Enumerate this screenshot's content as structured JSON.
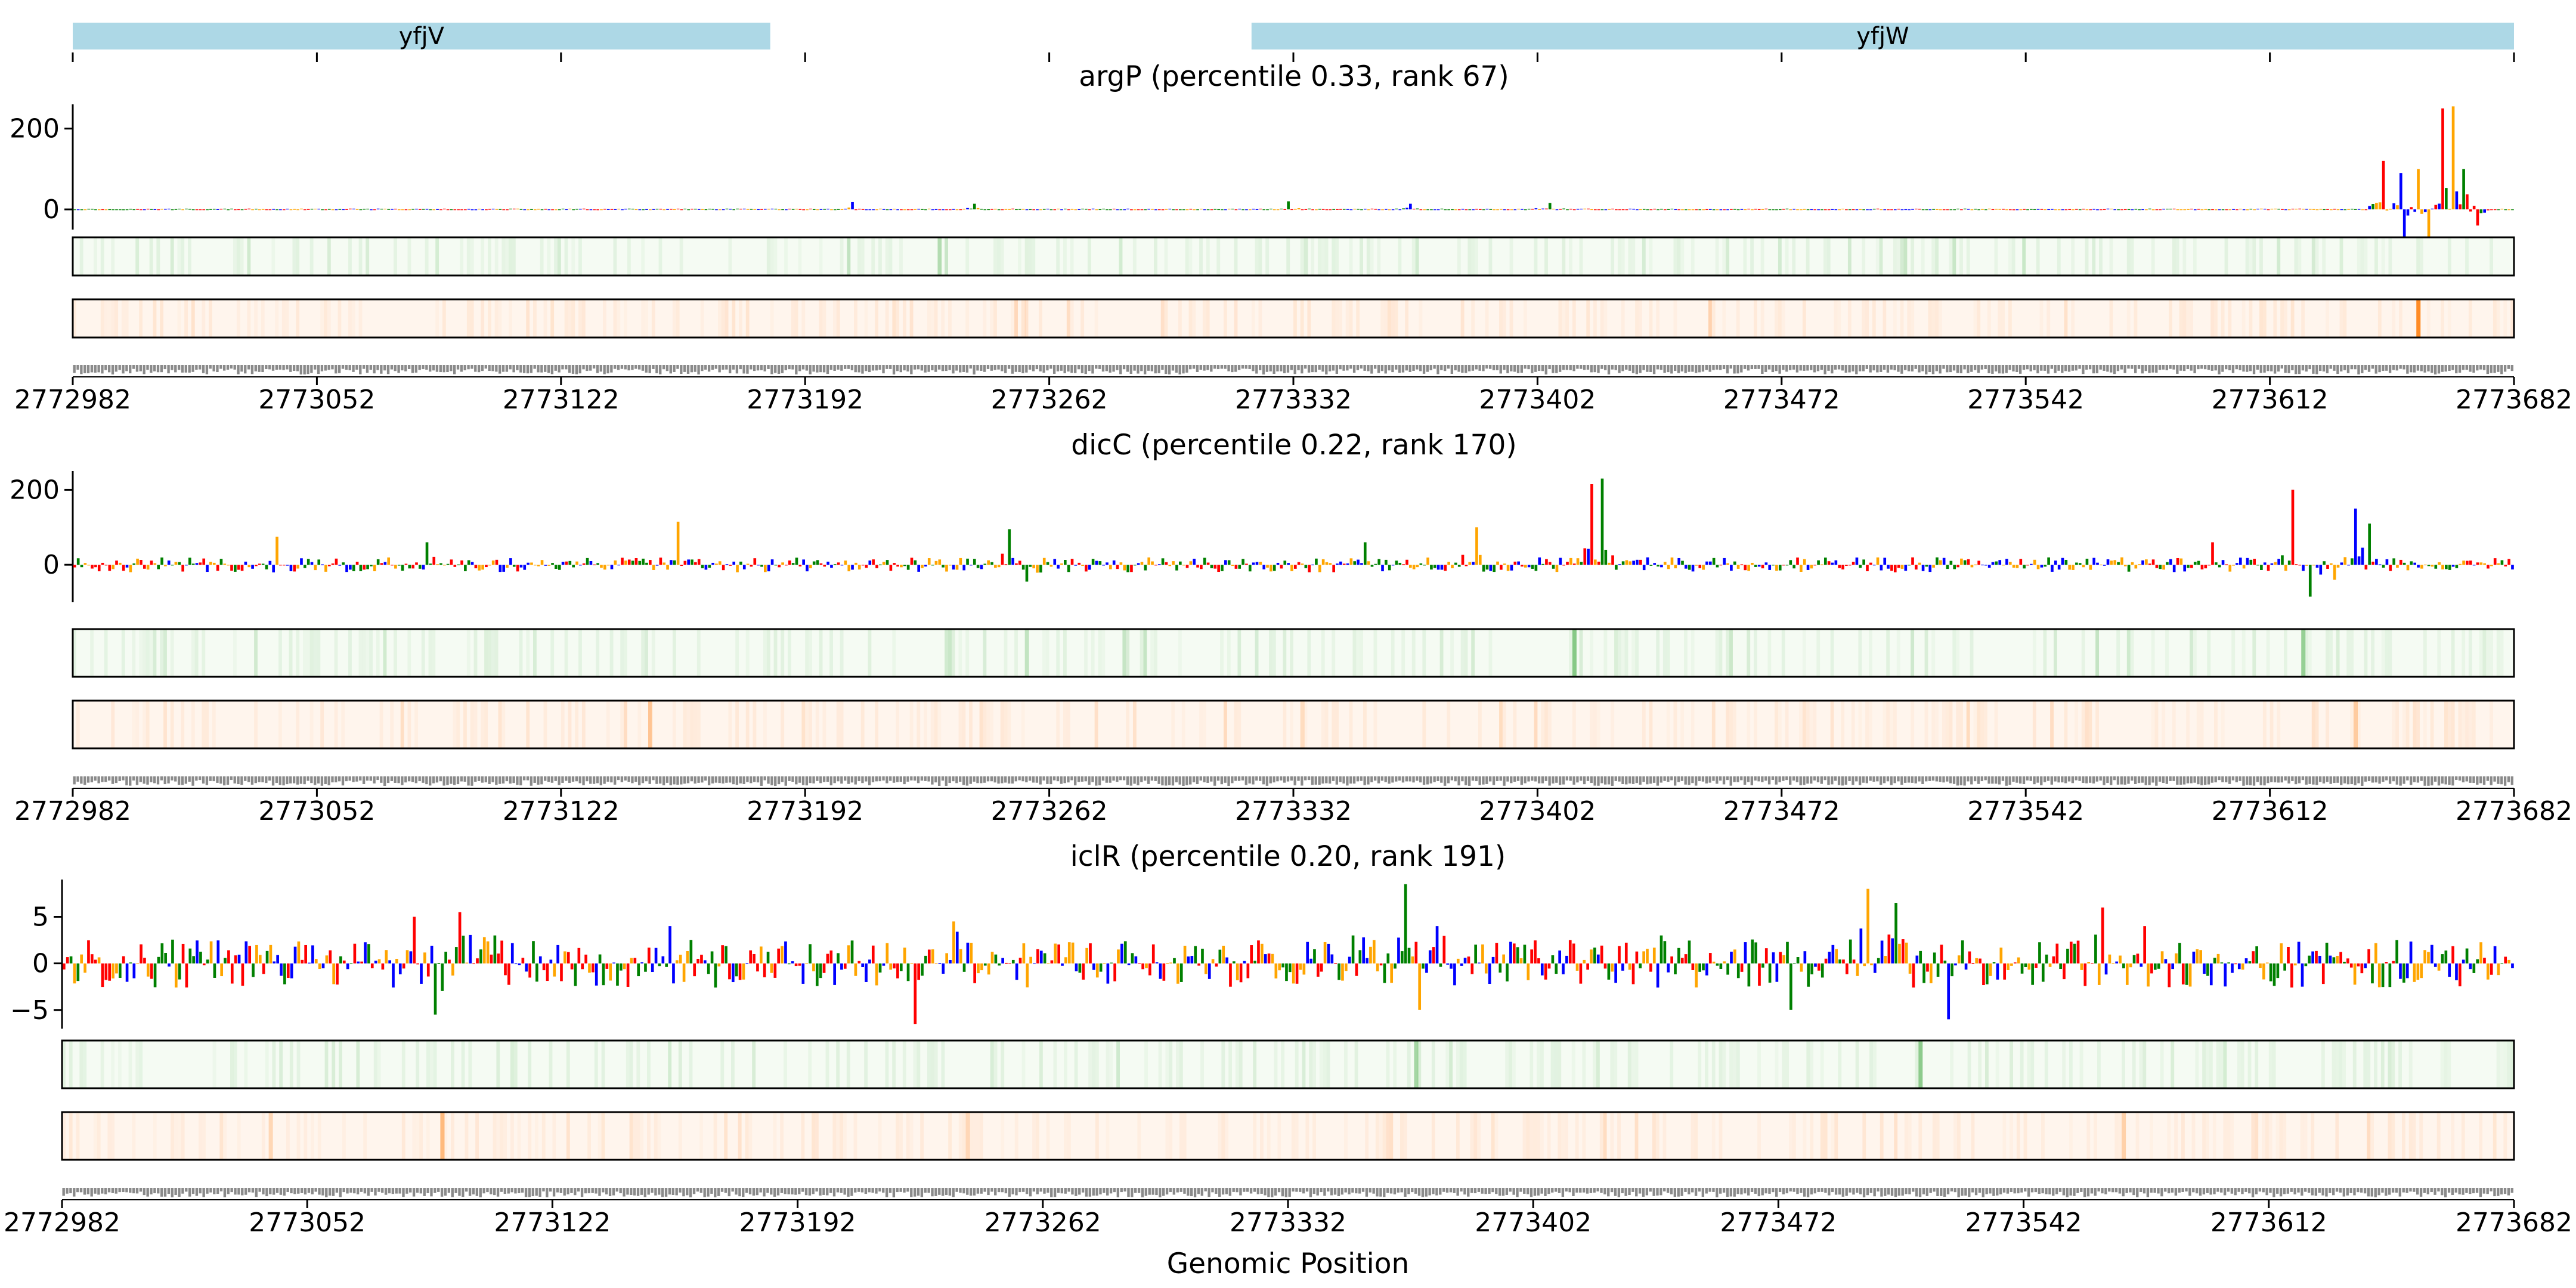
{
  "figure": {
    "xlabel": "Genomic Position",
    "x_ticks": [
      "2772982",
      "2773052",
      "2773122",
      "2773192",
      "2773262",
      "2773332",
      "2773402",
      "2773472",
      "2773542",
      "2773612",
      "2773682"
    ],
    "genes": [
      {
        "name": "yfjV",
        "start": 2772982,
        "end": 2773182
      },
      {
        "name": "yfjW",
        "start": 2773320,
        "end": 2773682
      }
    ]
  },
  "colors": {
    "A": "#008000",
    "C": "#0000ff",
    "G": "#ffa500",
    "T": "#ff0000",
    "gene_bar": "#add8e6",
    "attribution_track": "#2ca02c",
    "prediction_track": "#ff7f0e"
  },
  "chart_data": [
    {
      "type": "sequence-logo",
      "title": "argP (percentile 0.33, rank 67)",
      "x_range": [
        2772982,
        2773682
      ],
      "ylim": [
        -50,
        260
      ],
      "yticks": [
        "200",
        "0"
      ],
      "ytick_values": [
        200,
        0
      ],
      "scale": 2,
      "peaks": [
        {
          "x": 2773205,
          "value": 18
        },
        {
          "x": 2773240,
          "value": 14
        },
        {
          "x": 2773330,
          "value": 20
        },
        {
          "x": 2773365,
          "value": 14
        },
        {
          "x": 2773405,
          "value": 16
        },
        {
          "x": 2773644,
          "value": 120
        },
        {
          "x": 2773649,
          "value": 90
        },
        {
          "x": 2773654,
          "value": 100
        },
        {
          "x": 2773657,
          "value": -70
        },
        {
          "x": 2773661,
          "value": 250
        },
        {
          "x": 2773664,
          "value": 255
        },
        {
          "x": 2773667,
          "value": 100
        },
        {
          "x": 2773671,
          "value": -40
        },
        {
          "x": 2773650,
          "value": -90
        }
      ],
      "attribution_hotspots": [
        {
          "x": 2773230,
          "intensity": 0.25
        },
        {
          "x": 2773335,
          "intensity": 0.15
        }
      ],
      "prediction_hotspots": [
        {
          "x": 2773654,
          "intensity": 0.9
        },
        {
          "x": 2773254,
          "intensity": 0.12
        }
      ]
    },
    {
      "type": "sequence-logo",
      "title": "dicC (percentile 0.22, rank 170)",
      "x_range": [
        2772982,
        2773682
      ],
      "ylim": [
        -100,
        250
      ],
      "yticks": [
        "200",
        "0"
      ],
      "ytick_values": [
        200,
        0
      ],
      "scale": 20,
      "peaks": [
        {
          "x": 2773040,
          "value": 75
        },
        {
          "x": 2773083,
          "value": 60
        },
        {
          "x": 2773155,
          "value": 115
        },
        {
          "x": 2773250,
          "value": 95
        },
        {
          "x": 2773255,
          "value": -45
        },
        {
          "x": 2773352,
          "value": 60
        },
        {
          "x": 2773384,
          "value": 100
        },
        {
          "x": 2773417,
          "value": 215
        },
        {
          "x": 2773420,
          "value": 230
        },
        {
          "x": 2773595,
          "value": 60
        },
        {
          "x": 2773618,
          "value": 200
        },
        {
          "x": 2773623,
          "value": -85
        },
        {
          "x": 2773630,
          "value": -40
        },
        {
          "x": 2773636,
          "value": 150
        },
        {
          "x": 2773640,
          "value": 110
        }
      ],
      "attribution_hotspots": [
        {
          "x": 2773412,
          "intensity": 0.55
        },
        {
          "x": 2773621,
          "intensity": 0.45
        },
        {
          "x": 2773255,
          "intensity": 0.25
        }
      ],
      "prediction_hotspots": [
        {
          "x": 2773147,
          "intensity": 0.3
        },
        {
          "x": 2773334,
          "intensity": 0.2
        },
        {
          "x": 2773636,
          "intensity": 0.35
        }
      ]
    },
    {
      "type": "sequence-logo",
      "title": "iclR (percentile 0.20, rank 191)",
      "x_range": [
        2772982,
        2773682
      ],
      "ylim": [
        -7,
        9
      ],
      "yticks": [
        "5",
        "0",
        "−5"
      ],
      "ytick_values": [
        5,
        0,
        -5
      ],
      "scale": 2.6,
      "peaks": [
        {
          "x": 2773082,
          "value": 5
        },
        {
          "x": 2773088,
          "value": -5.5
        },
        {
          "x": 2773095,
          "value": 5.5
        },
        {
          "x": 2773105,
          "value": 3
        },
        {
          "x": 2773155,
          "value": 4
        },
        {
          "x": 2773225,
          "value": -6.5
        },
        {
          "x": 2773236,
          "value": 4.5
        },
        {
          "x": 2773350,
          "value": 3
        },
        {
          "x": 2773365,
          "value": 8.5
        },
        {
          "x": 2773369,
          "value": -5
        },
        {
          "x": 2773374,
          "value": 4
        },
        {
          "x": 2773438,
          "value": 3
        },
        {
          "x": 2773475,
          "value": -5
        },
        {
          "x": 2773497,
          "value": 8
        },
        {
          "x": 2773505,
          "value": 6.5
        },
        {
          "x": 2773520,
          "value": -6
        },
        {
          "x": 2773564,
          "value": 6
        },
        {
          "x": 2773576,
          "value": 4
        }
      ],
      "attribution_hotspots": [
        {
          "x": 2773368,
          "intensity": 0.4
        },
        {
          "x": 2773512,
          "intensity": 0.45
        }
      ],
      "prediction_hotspots": [
        {
          "x": 2773090,
          "intensity": 0.5
        },
        {
          "x": 2773041,
          "intensity": 0.25
        },
        {
          "x": 2773240,
          "intensity": 0.2
        },
        {
          "x": 2773570,
          "intensity": 0.3
        }
      ]
    }
  ]
}
